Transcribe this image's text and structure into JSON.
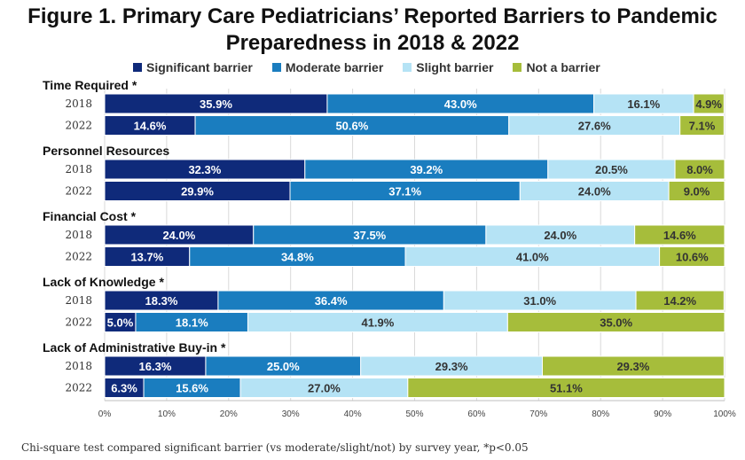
{
  "title_line1": "Figure 1. Primary Care Pediatricians’ Reported Barriers to Pandemic",
  "title_line2": "Preparedness in 2018 & 2022",
  "footnote": "Chi-square test compared significant barrier (vs moderate/slight/not) by survey year,  *p<0.05",
  "chart_data": {
    "type": "bar",
    "orientation": "horizontal",
    "stacked": "100%",
    "title": "Figure 1. Primary Care Pediatricians’ Reported Barriers to Pandemic Preparedness in 2018 & 2022",
    "legend_position": "top",
    "xlim": [
      0,
      100
    ],
    "x_ticks": [
      "0%",
      "10%",
      "20%",
      "30%",
      "40%",
      "50%",
      "60%",
      "70%",
      "80%",
      "90%",
      "100%"
    ],
    "series": [
      {
        "name": "Significant barrier",
        "color": "#0f2a7a",
        "label_color": "#ffffff"
      },
      {
        "name": "Moderate barrier",
        "color": "#1a7dbf",
        "label_color": "#ffffff"
      },
      {
        "name": "Slight barrier",
        "color": "#b5e3f5",
        "label_color": "#333333"
      },
      {
        "name": "Not a barrier",
        "color": "#a6bd3b",
        "label_color": "#333333"
      }
    ],
    "groups": [
      {
        "label": "Time Required *",
        "rows": [
          {
            "year": "2018",
            "values": [
              35.9,
              43.0,
              16.1,
              4.9
            ],
            "labels": [
              "35.9%",
              "43.0%",
              "16.1%",
              "4.9%"
            ]
          },
          {
            "year": "2022",
            "values": [
              14.6,
              50.6,
              27.6,
              7.1
            ],
            "labels": [
              "14.6%",
              "50.6%",
              "27.6%",
              "7.1%"
            ]
          }
        ]
      },
      {
        "label": "Personnel Resources",
        "rows": [
          {
            "year": "2018",
            "values": [
              32.3,
              39.2,
              20.5,
              8.0
            ],
            "labels": [
              "32.3%",
              "39.2%",
              "20.5%",
              "8.0%"
            ]
          },
          {
            "year": "2022",
            "values": [
              29.9,
              37.1,
              24.0,
              9.0
            ],
            "labels": [
              "29.9%",
              "37.1%",
              "24.0%",
              "9.0%"
            ]
          }
        ]
      },
      {
        "label": "Financial Cost *",
        "rows": [
          {
            "year": "2018",
            "values": [
              24.0,
              37.5,
              24.0,
              14.6
            ],
            "labels": [
              "24.0%",
              "37.5%",
              "24.0%",
              "14.6%"
            ]
          },
          {
            "year": "2022",
            "values": [
              13.7,
              34.8,
              41.0,
              10.6
            ],
            "labels": [
              "13.7%",
              "34.8%",
              "41.0%",
              "10.6%"
            ]
          }
        ]
      },
      {
        "label": "Lack of Knowledge *",
        "rows": [
          {
            "year": "2018",
            "values": [
              18.3,
              36.4,
              31.0,
              14.2
            ],
            "labels": [
              "18.3%",
              "36.4%",
              "31.0%",
              "14.2%"
            ]
          },
          {
            "year": "2022",
            "values": [
              5.0,
              18.1,
              41.9,
              35.0
            ],
            "labels": [
              "5.0%",
              "18.1%",
              "41.9%",
              "35.0%"
            ]
          }
        ]
      },
      {
        "label": "Lack of Administrative Buy-in *",
        "rows": [
          {
            "year": "2018",
            "values": [
              16.3,
              25.0,
              29.3,
              29.3
            ],
            "labels": [
              "16.3%",
              "25.0%",
              "29.3%",
              "29.3%"
            ]
          },
          {
            "year": "2022",
            "values": [
              6.3,
              15.6,
              27.0,
              51.1
            ],
            "labels": [
              "6.3%",
              "15.6%",
              "27.0%",
              "51.1%"
            ]
          }
        ]
      }
    ]
  }
}
